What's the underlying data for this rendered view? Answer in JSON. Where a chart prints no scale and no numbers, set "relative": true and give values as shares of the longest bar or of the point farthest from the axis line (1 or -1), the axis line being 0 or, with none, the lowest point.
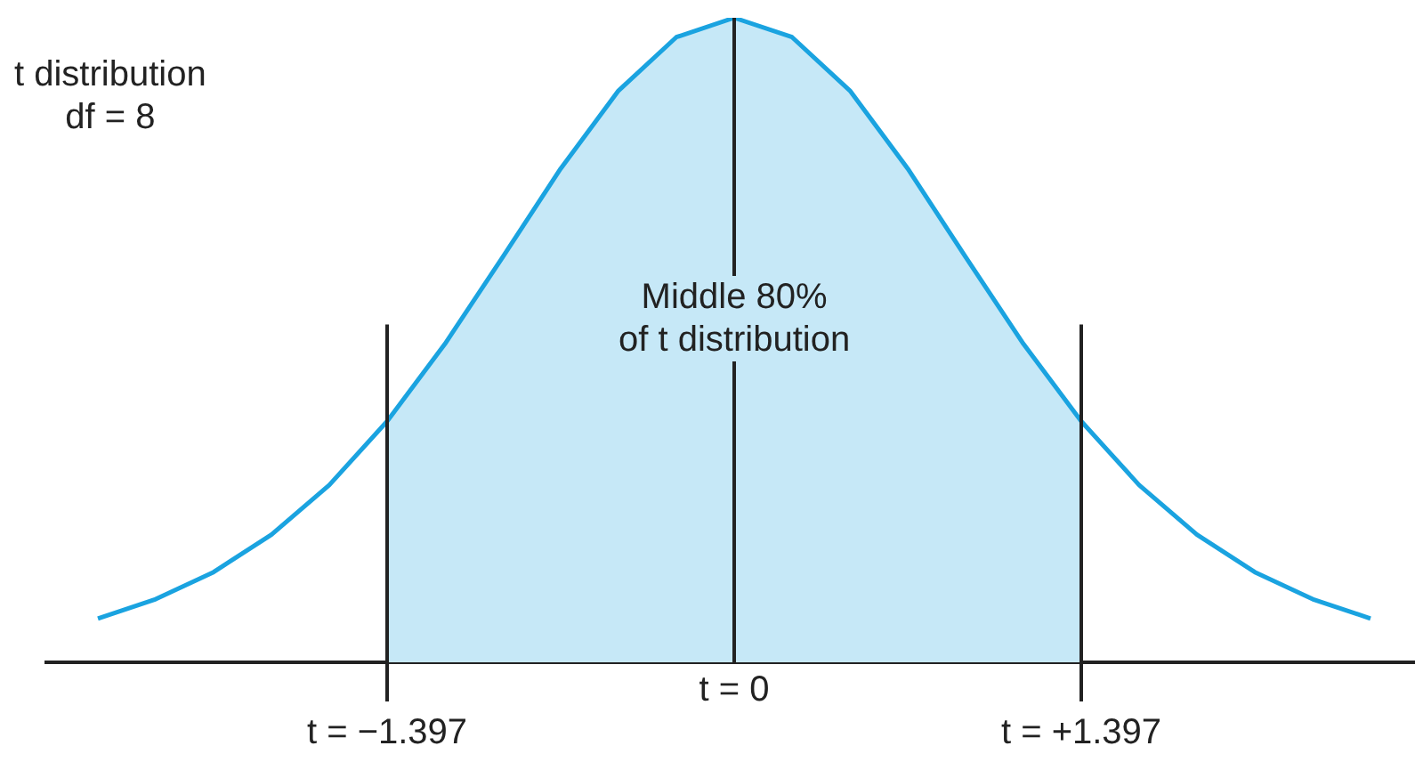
{
  "chart_data": {
    "type": "line",
    "relative": true,
    "marker": "none",
    "categories": [
      null,
      null,
      null,
      null,
      null,
      "t = −1.397",
      null,
      null,
      null,
      null,
      null,
      "t = 0",
      null,
      null,
      null,
      null,
      null,
      "t = +1.397",
      null,
      null,
      null,
      null,
      null
    ],
    "series": [
      {
        "type": "area",
        "color": "#c6e8f7",
        "values": [
          null,
          null,
          null,
          null,
          null,
          0.374,
          0.494,
          0.629,
          0.766,
          0.887,
          0.97,
          1,
          0.97,
          0.887,
          0.766,
          0.629,
          0.494,
          0.374,
          null,
          null,
          null,
          null,
          null
        ]
      },
      {
        "type": "line",
        "color": "#1aa3e0",
        "values": [
          0.068,
          0.098,
          0.14,
          0.198,
          0.275,
          0.374,
          0.494,
          0.629,
          0.766,
          0.887,
          0.97,
          1,
          0.97,
          0.887,
          0.766,
          0.629,
          0.494,
          0.374,
          0.275,
          0.198,
          0.14,
          0.098,
          0.068
        ]
      }
    ],
    "ref_lines": [
      {
        "axis": "x",
        "value": "t = −1.397"
      },
      {
        "axis": "x",
        "value": "t = 0"
      },
      {
        "axis": "x",
        "value": "t = +1.397"
      }
    ],
    "annotations": [
      "t distribution\ndf = 8",
      "Middle 80%\nof t distribution"
    ]
  }
}
